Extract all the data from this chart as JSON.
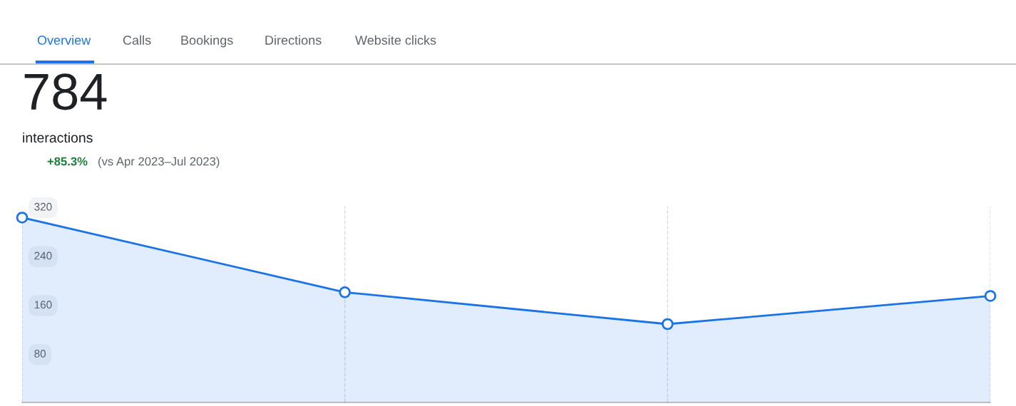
{
  "chart_data": {
    "type": "area",
    "title": "784",
    "subtitle": "interactions",
    "annotations": [
      "Overview",
      "Calls",
      "Bookings",
      "Directions",
      "Website clicks",
      "+85.3%",
      "(vs Apr 2023–Jul 2023)"
    ],
    "categories": [
      null,
      null,
      null,
      null
    ],
    "series": [
      {
        "color": "#1a73e8",
        "values": [
          302,
          180,
          128,
          174
        ]
      }
    ],
    "ylim": [
      0,
      320
    ],
    "yticks": [
      80,
      160,
      240,
      320
    ],
    "grid": "x",
    "marker": "circle",
    "line_style": "solid",
    "legend": false
  }
}
